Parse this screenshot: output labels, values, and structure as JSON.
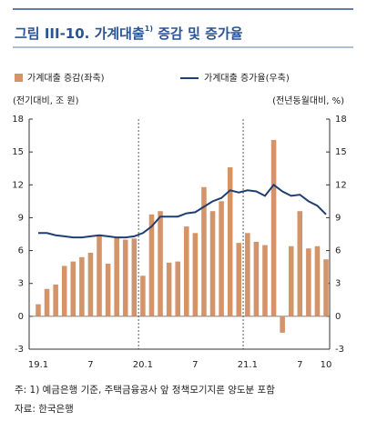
{
  "header": {
    "title": "그림 III-10. 가계대출",
    "title_sup": "1)",
    "title_tail": " 증감 및 증가율"
  },
  "chart_data": {
    "type": "bar-line",
    "legend": [
      "가계대출 증감(좌축)",
      "가계대출 증가율(우축)"
    ],
    "y_label": "(전기대비, 조 원)",
    "y2_label": "(전년동월대비, %)",
    "categories": [
      "19.1",
      null,
      null,
      null,
      null,
      null,
      "7",
      null,
      null,
      null,
      null,
      null,
      "20.1",
      null,
      null,
      null,
      null,
      null,
      "7",
      null,
      null,
      null,
      null,
      null,
      "21.1",
      null,
      null,
      null,
      null,
      null,
      "7",
      null,
      null,
      "10"
    ],
    "series": [
      {
        "name": "가계대출 증감(좌축)",
        "color": "#d4946a",
        "type": "bar",
        "values": [
          1.1,
          2.5,
          2.9,
          4.6,
          5.0,
          5.4,
          5.8,
          7.4,
          4.8,
          7.2,
          7.0,
          7.1,
          3.7,
          9.3,
          9.6,
          4.9,
          5.0,
          8.2,
          7.6,
          11.8,
          9.6,
          10.5,
          13.6,
          6.7,
          7.6,
          6.8,
          6.5,
          16.1,
          -1.5,
          6.4,
          9.6,
          6.2,
          6.4,
          5.2
        ]
      },
      {
        "name": "가계대출 증가율(우축)",
        "color": "#1f3f73",
        "type": "line",
        "axis": "y2",
        "values": [
          7.6,
          7.6,
          7.4,
          7.3,
          7.2,
          7.2,
          7.3,
          7.4,
          7.3,
          7.2,
          7.2,
          7.3,
          7.6,
          8.2,
          9.1,
          9.1,
          9.1,
          9.4,
          9.5,
          10.0,
          10.5,
          10.8,
          11.5,
          11.3,
          11.5,
          11.4,
          11.0,
          12.0,
          11.4,
          11.0,
          11.1,
          10.5,
          10.1,
          9.3
        ]
      }
    ],
    "ylim": [
      -3,
      18
    ],
    "yticks": [
      -3,
      0,
      3,
      6,
      9,
      12,
      15,
      18
    ],
    "y2lim": [
      -3,
      18
    ],
    "y2ticks": [
      -3,
      0,
      3,
      6,
      9,
      12,
      15,
      18
    ]
  },
  "footer": {
    "note": "주: 1) 예금은행 기준, 주택금융공사 앞 정책모기지론 양도분 포함",
    "source": "자료: 한국은행"
  }
}
